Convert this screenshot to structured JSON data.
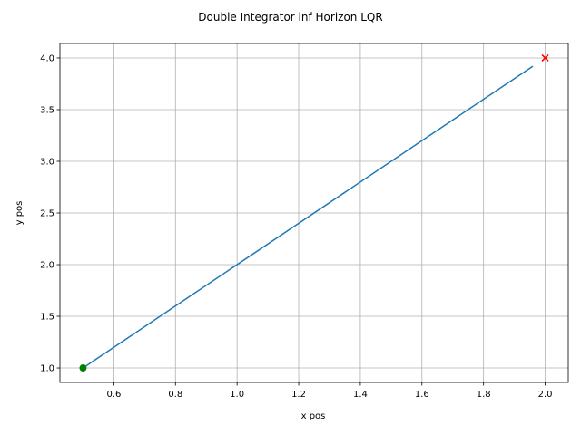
{
  "chart_data": {
    "type": "line",
    "title": "Double Integrator inf Horizon LQR",
    "xlabel": "x pos",
    "ylabel": "y pos",
    "xlim": [
      0.425,
      2.075
    ],
    "ylim": [
      0.86,
      4.14
    ],
    "grid": true,
    "x_ticks": [
      0.6,
      0.8,
      1.0,
      1.2,
      1.4,
      1.6,
      1.8,
      2.0
    ],
    "x_tick_labels": [
      "0.6",
      "0.8",
      "1.0",
      "1.2",
      "1.4",
      "1.6",
      "1.8",
      "2.0"
    ],
    "y_ticks": [
      1.0,
      1.5,
      2.0,
      2.5,
      3.0,
      3.5,
      4.0
    ],
    "y_tick_labels": [
      "1.0",
      "1.5",
      "2.0",
      "2.5",
      "3.0",
      "3.5",
      "4.0"
    ],
    "series": [
      {
        "color": "#1f77b4",
        "x": [
          0.5,
          1.96
        ],
        "y": [
          1.0,
          3.92
        ]
      }
    ],
    "markers": [
      {
        "kind": "start",
        "shape": "circle",
        "color": "#008000",
        "x": 0.5,
        "y": 1.0
      },
      {
        "kind": "goal",
        "shape": "x",
        "color": "#ff0000",
        "x": 2.0,
        "y": 4.0
      }
    ]
  }
}
